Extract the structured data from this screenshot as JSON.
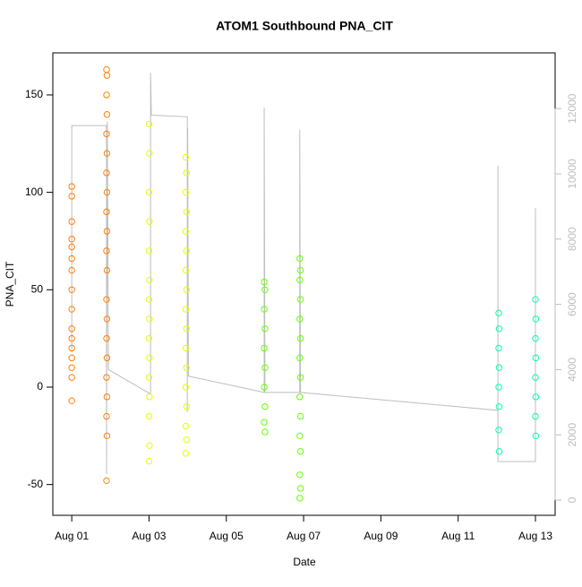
{
  "chart_data": {
    "type": "scatter",
    "title": "ATOM1 Southbound PNA_CIT",
    "x_label": "Date",
    "y_label": "PNA_CIT",
    "xlim": [
      -0.49,
      12.51
    ],
    "ylim": [
      -65.8,
      171.6
    ],
    "y2lim": [
      -467,
      13709
    ],
    "xticks": [
      {
        "value": 0,
        "label": "Aug 01"
      },
      {
        "value": 2,
        "label": "Aug 03"
      },
      {
        "value": 4,
        "label": "Aug 05"
      },
      {
        "value": 6,
        "label": "Aug 07"
      },
      {
        "value": 8,
        "label": "Aug 09"
      },
      {
        "value": 10,
        "label": "Aug 11"
      },
      {
        "value": 12,
        "label": "Aug 13"
      }
    ],
    "yticks": [
      -50,
      0,
      50,
      100,
      150
    ],
    "y2ticks": [
      0,
      2000,
      4000,
      6000,
      8000,
      10000,
      12000
    ],
    "series": [
      {
        "color": "#ff8000",
        "x": [
          0,
          0,
          0,
          0,
          0,
          0,
          0,
          0,
          0,
          0,
          0,
          0,
          0,
          0,
          0,
          0
        ],
        "values": [
          103,
          98,
          85,
          76,
          72,
          66,
          60,
          50,
          40,
          30,
          25,
          20,
          15,
          10,
          5,
          -7
        ]
      },
      {
        "color": "#ff8000",
        "x": [
          0.9,
          0.91,
          0.9,
          0.91,
          0.9,
          0.91,
          0.9,
          0.91,
          0.9,
          0.91,
          0.9,
          0.91,
          0.9,
          0.91,
          0.9,
          0.91,
          0.9,
          0.91,
          0.9,
          0.91,
          0.9
        ],
        "values": [
          163,
          160,
          150,
          140,
          130,
          120,
          110,
          100,
          90,
          80,
          70,
          60,
          45,
          35,
          25,
          15,
          5,
          -5,
          -15,
          -25,
          -48
        ]
      },
      {
        "color": "#e6ff00",
        "x": [
          2,
          2.01,
          2,
          2.01,
          2,
          2.01,
          2,
          2.01,
          2,
          2.01,
          2,
          2.01,
          2,
          2.01,
          2
        ],
        "values": [
          135,
          120,
          100,
          85,
          70,
          55,
          45,
          35,
          25,
          15,
          5,
          -5,
          -15,
          -30,
          -38
        ]
      },
      {
        "color": "#e6ff00",
        "x": [
          2.95,
          2.97,
          2.95,
          2.97,
          2.95,
          2.97,
          2.95,
          2.97,
          2.95,
          2.97,
          2.95,
          2.97,
          2.95,
          2.97,
          2.95,
          2.97,
          2.95
        ],
        "values": [
          118,
          110,
          100,
          90,
          80,
          70,
          60,
          50,
          40,
          30,
          20,
          10,
          0,
          -10,
          -20,
          -27,
          -34
        ]
      },
      {
        "color": "#66ff00",
        "x": [
          4.98,
          5,
          4.98,
          5,
          4.98,
          5,
          4.98,
          5,
          4.98,
          5
        ],
        "values": [
          54,
          50,
          40,
          30,
          20,
          10,
          0,
          -10,
          -18,
          -23
        ]
      },
      {
        "color": "#66ff00",
        "x": [
          5.9,
          5.92,
          5.9,
          5.92,
          5.9,
          5.92,
          5.9,
          5.92,
          5.9,
          5.92,
          5.9,
          5.92,
          5.9,
          5.92,
          5.9
        ],
        "values": [
          66,
          60,
          55,
          45,
          35,
          25,
          15,
          5,
          -5,
          -15,
          -25,
          -33,
          -45,
          -52,
          -57
        ]
      },
      {
        "color": "#00ffb3",
        "x": [
          11.05,
          11.06,
          11.05,
          11.06,
          11.05,
          11.06,
          11.05,
          11.06
        ],
        "values": [
          38,
          30,
          20,
          10,
          0,
          -10,
          -22,
          -33
        ]
      },
      {
        "color": "#00ffb3",
        "x": [
          12,
          12.01,
          12,
          12.01,
          12,
          12.01,
          12,
          12.01
        ],
        "values": [
          45,
          35,
          25,
          15,
          5,
          -5,
          -15,
          -25
        ]
      },
      {
        "color": "#bebebe",
        "axis": "y2",
        "x": [
          0,
          0,
          0.9,
          0.9,
          0.92,
          0.95,
          2.04,
          2.04,
          2.06,
          2.99,
          2.99,
          3.0,
          3.02,
          4.98,
          4.98,
          5.0,
          5.9,
          5.9,
          5.92,
          11.03,
          11.03,
          11.03,
          12.0,
          12.0,
          12.0
        ],
        "values": [
          4530,
          11480,
          11480,
          800,
          11600,
          4000,
          3250,
          13100,
          11800,
          11750,
          2700,
          11400,
          3800,
          3300,
          12030,
          3300,
          3300,
          11350,
          3300,
          2750,
          10250,
          1180,
          1180,
          8950,
          2470
        ]
      }
    ]
  }
}
